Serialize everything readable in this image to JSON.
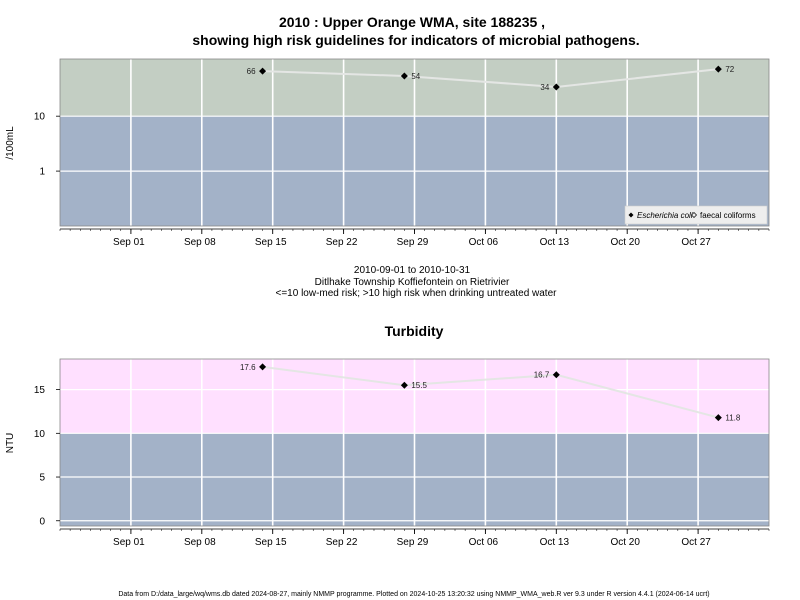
{
  "chart_data": [
    {
      "type": "line",
      "title_line1": "2010 : Upper Orange WMA, site 188235 ,",
      "title_line2": "showing high risk guidelines for indicators of microbial pathogens.",
      "ylabel": "/100mL",
      "yscale": "log",
      "ylim": [
        0.1,
        110
      ],
      "yticks": [
        {
          "value": 1,
          "label": "1"
        },
        {
          "value": 10,
          "label": "10"
        }
      ],
      "xlim": [
        "2010-08-25",
        "2010-11-03"
      ],
      "xticks": [
        {
          "date": "2010-09-01",
          "label": "Sep 01"
        },
        {
          "date": "2010-09-08",
          "label": "Sep 08"
        },
        {
          "date": "2010-09-15",
          "label": "Sep 15"
        },
        {
          "date": "2010-09-22",
          "label": "Sep 22"
        },
        {
          "date": "2010-09-29",
          "label": "Sep 29"
        },
        {
          "date": "2010-10-06",
          "label": "Oct 06"
        },
        {
          "date": "2010-10-13",
          "label": "Oct 13"
        },
        {
          "date": "2010-10-20",
          "label": "Oct 20"
        },
        {
          "date": "2010-10-27",
          "label": "Oct 27"
        }
      ],
      "bands": [
        {
          "from": 0.1,
          "to": 10,
          "color": "#a3b2c8"
        },
        {
          "from": 10,
          "to": 110,
          "color": "#c3cec3"
        }
      ],
      "series": [
        {
          "name": "Escherichia coli",
          "color": "#000000",
          "line_color": "#e4e6e4",
          "points": [
            {
              "x": "2010-09-14",
              "y": 66,
              "label": "66",
              "side": "left"
            },
            {
              "x": "2010-09-28",
              "y": 54,
              "label": "54",
              "side": "right"
            },
            {
              "x": "2010-10-13",
              "y": 34,
              "label": "34",
              "side": "left"
            },
            {
              "x": "2010-10-29",
              "y": 72,
              "label": "72",
              "side": "right"
            }
          ]
        }
      ],
      "legend": {
        "position": "bottom-right",
        "entries": [
          {
            "label": "Escherichia coli",
            "marker": "filled-diamond",
            "italic": true
          },
          {
            "label": "faecal coliforms",
            "marker": "open-diamond",
            "italic": false
          }
        ]
      },
      "notes": [
        "2010-09-01 to 2010-10-31",
        "Ditlhake Township Koffiefontein on Rietrivier",
        "<=10 low-med risk; >10 high risk when drinking untreated water"
      ]
    },
    {
      "type": "line",
      "title": "Turbidity",
      "ylabel": "NTU",
      "ylim": [
        -0.6,
        18.5
      ],
      "yticks": [
        {
          "value": 0,
          "label": "0"
        },
        {
          "value": 5,
          "label": "5"
        },
        {
          "value": 10,
          "label": "10"
        },
        {
          "value": 15,
          "label": "15"
        }
      ],
      "xlim": [
        "2010-08-25",
        "2010-11-03"
      ],
      "xticks": [
        {
          "date": "2010-09-01",
          "label": "Sep 01"
        },
        {
          "date": "2010-09-08",
          "label": "Sep 08"
        },
        {
          "date": "2010-09-15",
          "label": "Sep 15"
        },
        {
          "date": "2010-09-22",
          "label": "Sep 22"
        },
        {
          "date": "2010-09-29",
          "label": "Sep 29"
        },
        {
          "date": "2010-10-06",
          "label": "Oct 06"
        },
        {
          "date": "2010-10-13",
          "label": "Oct 13"
        },
        {
          "date": "2010-10-20",
          "label": "Oct 20"
        },
        {
          "date": "2010-10-27",
          "label": "Oct 27"
        }
      ],
      "bands": [
        {
          "from": -0.6,
          "to": 10,
          "color": "#a3b2c8"
        },
        {
          "from": 10,
          "to": 18.5,
          "color": "#ffe0ff"
        }
      ],
      "series": [
        {
          "color": "#000000",
          "line_color": "#e4e6e4",
          "points": [
            {
              "x": "2010-09-14",
              "y": 17.6,
              "label": "17.6",
              "side": "left"
            },
            {
              "x": "2010-09-28",
              "y": 15.5,
              "label": "15.5",
              "side": "right"
            },
            {
              "x": "2010-10-13",
              "y": 16.7,
              "label": "16.7",
              "side": "left"
            },
            {
              "x": "2010-10-29",
              "y": 11.8,
              "label": "11.8",
              "side": "right"
            }
          ]
        }
      ]
    }
  ],
  "footer": "Data from D:/data_large/wq/wms.db dated 2024-08-27, mainly NMMP programme. Plotted on 2024-10-25 13:20:32 using NMMP_WMA_web.R ver 9.3 under R version 4.4.1 (2024-06-14 ucrt)"
}
